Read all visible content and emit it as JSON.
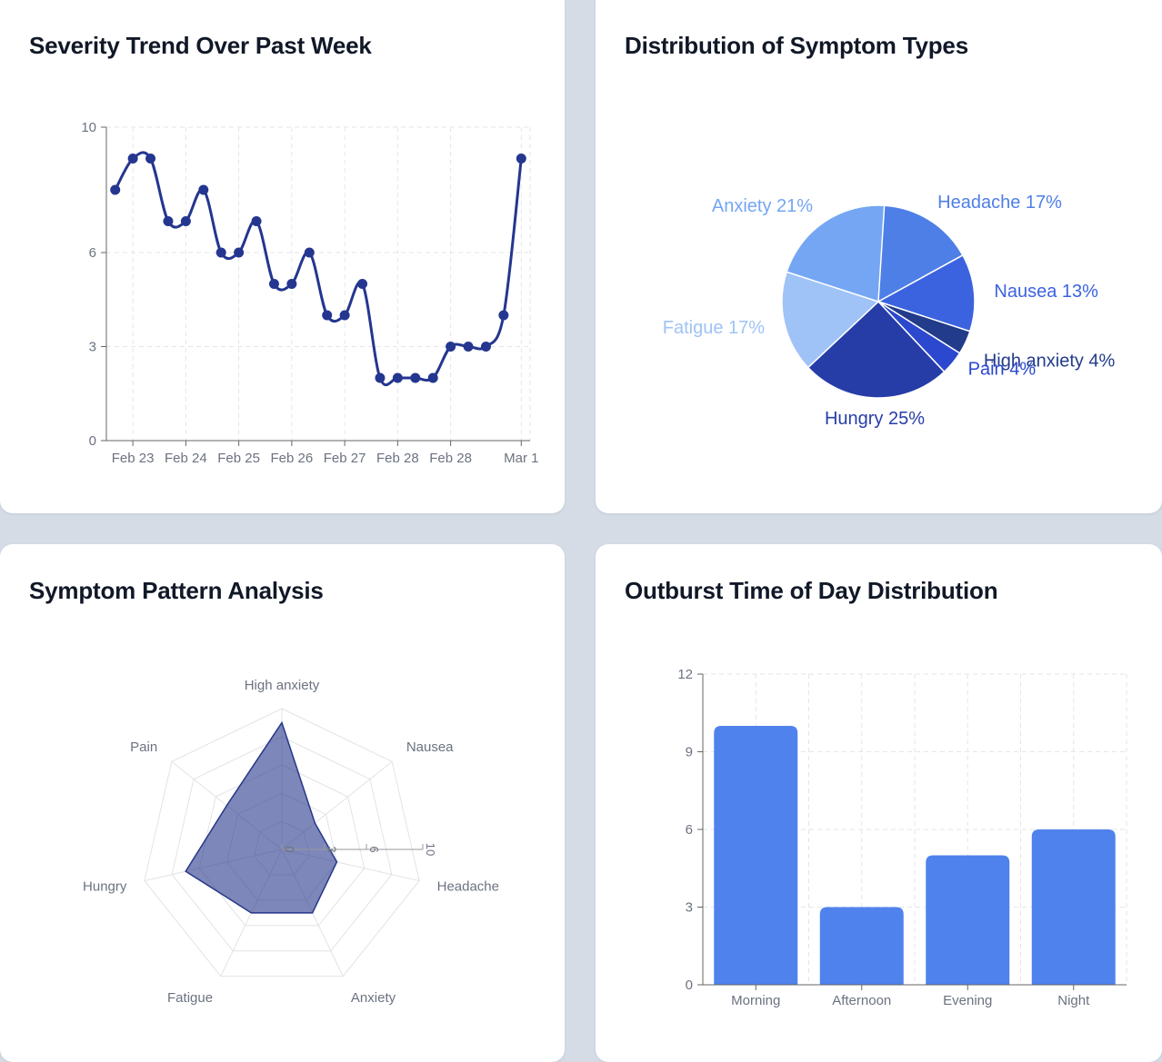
{
  "chart_data": [
    {
      "id": "severity",
      "type": "line",
      "title": "Severity Trend Over Past Week",
      "ylim": [
        0,
        10
      ],
      "yticks": [
        0,
        3,
        6,
        10
      ],
      "x_tick_labels": [
        "Feb 23",
        "Feb 24",
        "Feb 25",
        "Feb 26",
        "Feb 27",
        "Feb 28",
        "Feb 28",
        "Mar 1"
      ],
      "x_tick_index": [
        1,
        4,
        7,
        10,
        13,
        16,
        19,
        23
      ],
      "values": [
        8,
        9,
        9,
        7,
        7,
        8,
        6,
        6,
        7,
        5,
        5,
        6,
        4,
        4,
        5,
        2,
        2,
        2,
        2,
        3,
        3,
        3,
        4,
        9
      ],
      "grid": true,
      "color": "#24368f"
    },
    {
      "id": "symptom-types",
      "type": "pie",
      "title": "Distribution of Symptom Types",
      "slices": [
        {
          "label": "Headache",
          "percent": 17,
          "color": "#4e7fe7"
        },
        {
          "label": "Nausea",
          "percent": 13,
          "color": "#3b63e0"
        },
        {
          "label": "High anxiety",
          "percent": 4,
          "color": "#223b8a"
        },
        {
          "label": "Pain",
          "percent": 4,
          "color": "#2b48cf"
        },
        {
          "label": "Hungry",
          "percent": 25,
          "color": "#263da8"
        },
        {
          "label": "Fatigue",
          "percent": 17,
          "color": "#9fc3f6"
        },
        {
          "label": "Anxiety",
          "percent": 21,
          "color": "#74a6f3"
        }
      ]
    },
    {
      "id": "pattern",
      "type": "radar",
      "title": "Symptom Pattern Analysis",
      "axes": [
        "High anxiety",
        "Nausea",
        "Headache",
        "Anxiety",
        "Fatigue",
        "Hungry",
        "Pain"
      ],
      "values": [
        9,
        3,
        4,
        5,
        5,
        7,
        5
      ],
      "rlim": [
        0,
        10
      ],
      "rticks": [
        0,
        3,
        6,
        10
      ],
      "fill_color": "#26378a"
    },
    {
      "id": "outburst",
      "type": "bar",
      "title": "Outburst Time of Day Distribution",
      "categories": [
        "Morning",
        "Afternoon",
        "Evening",
        "Night"
      ],
      "values": [
        10,
        3,
        5,
        6
      ],
      "ylim": [
        0,
        12
      ],
      "yticks": [
        0,
        3,
        6,
        9,
        12
      ],
      "grid": true,
      "color": "#4f82ec"
    }
  ]
}
